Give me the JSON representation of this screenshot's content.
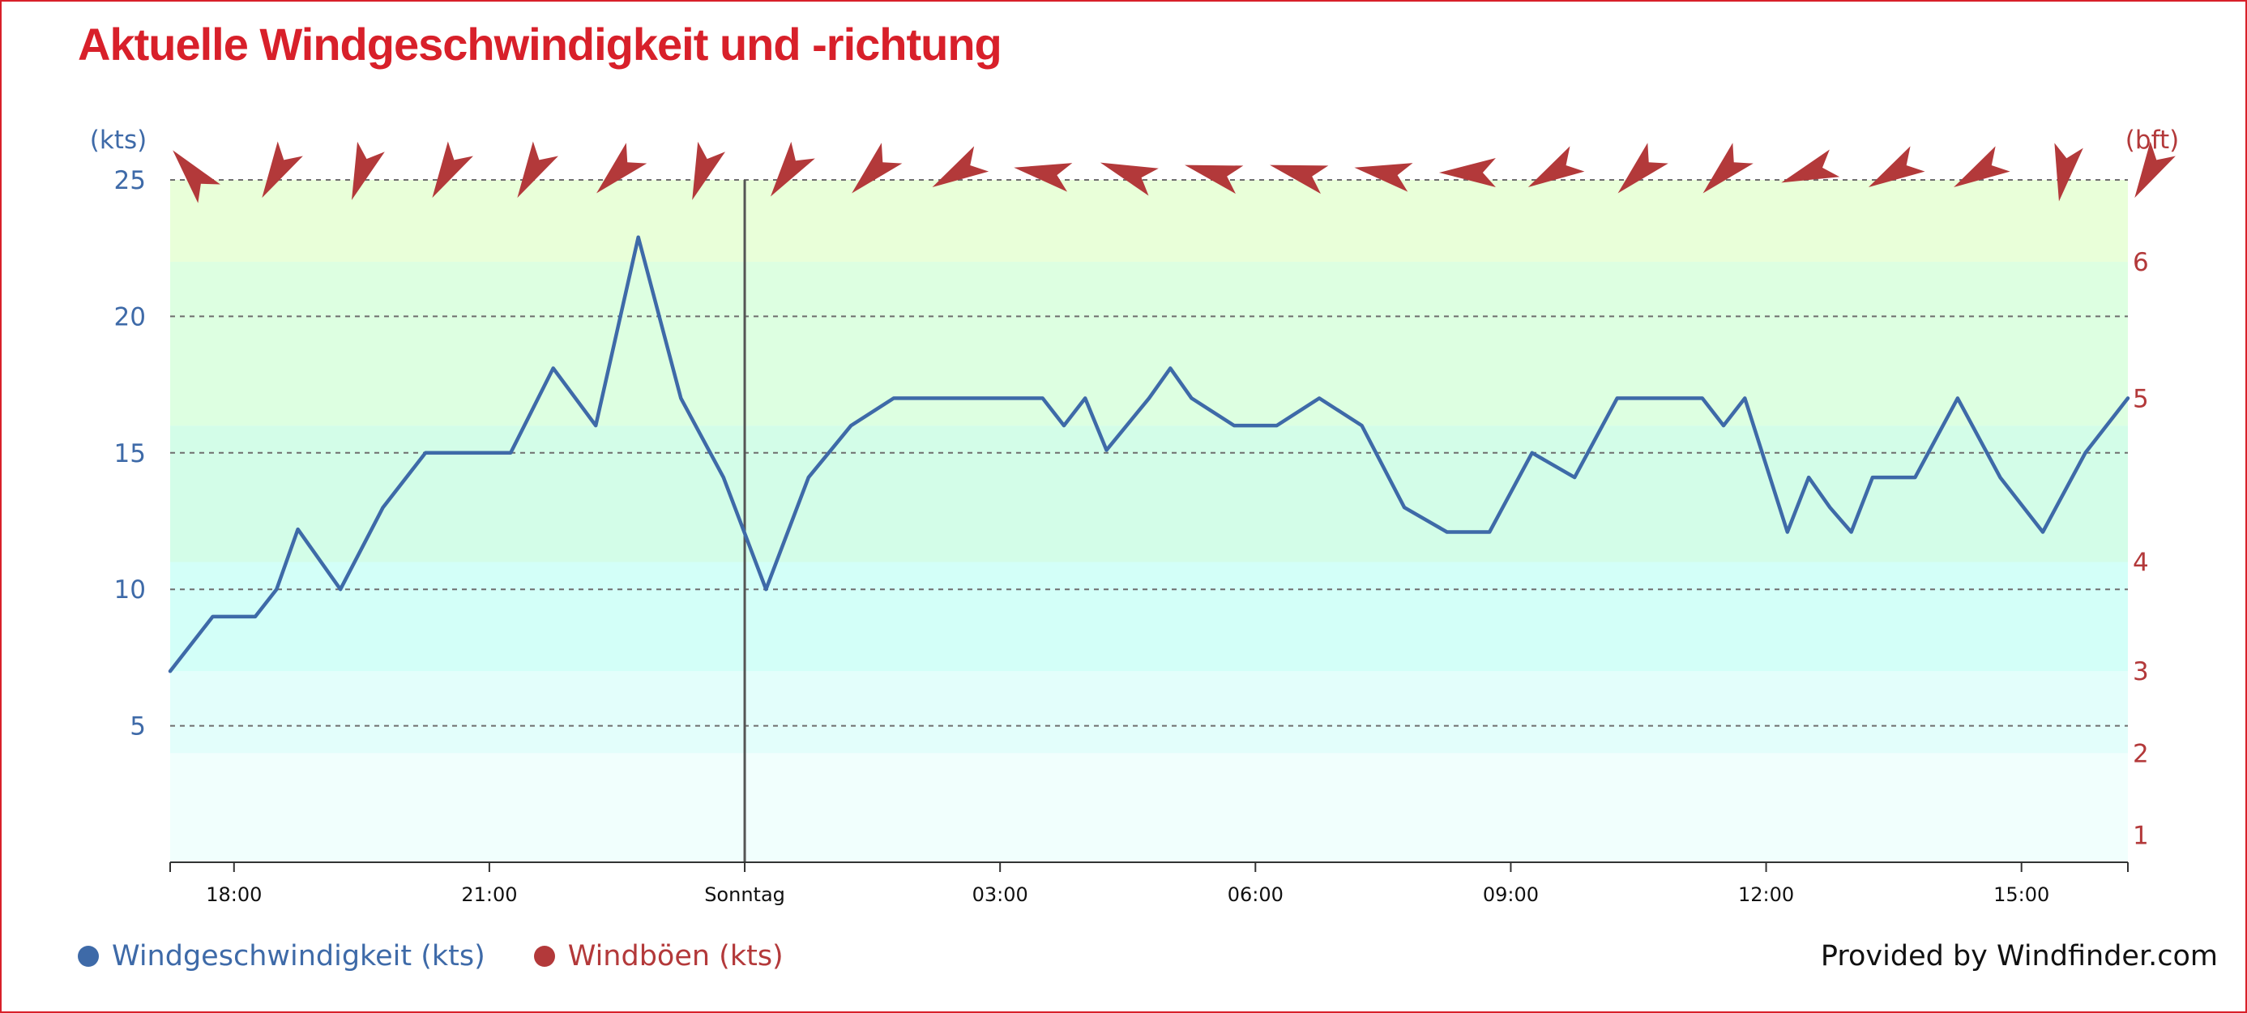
{
  "title": "Aktuelle Windgeschwindigkeit und -richtung",
  "credit": "Provided by Windfinder.com",
  "legend": [
    {
      "label": "Windgeschwindigkeit (kts)",
      "color": "#3e6aa8"
    },
    {
      "label": "Windböen (kts)",
      "color": "#b3393a"
    }
  ],
  "chart_data": {
    "type": "line",
    "y_left": {
      "label": "(kts)",
      "range": [
        0,
        25
      ],
      "ticks": [
        5,
        10,
        15,
        20,
        25
      ],
      "color": "#3e6aa8"
    },
    "y_right": {
      "label": "(bft)",
      "ticks": [
        "1",
        "2",
        "3",
        "4",
        "5",
        "6"
      ],
      "tick_kts": [
        1.0,
        4.0,
        7.0,
        11.0,
        17.0,
        22.0
      ],
      "color": "#b3393a"
    },
    "x": {
      "range_hours": [
        17.25,
        40.25
      ],
      "ticks": [
        {
          "label": "18:00",
          "t": 18
        },
        {
          "label": "21:00",
          "t": 21
        },
        {
          "label": "Sonntag",
          "t": 24,
          "day_marker": true
        },
        {
          "label": "03:00",
          "t": 27
        },
        {
          "label": "06:00",
          "t": 30
        },
        {
          "label": "09:00",
          "t": 33
        },
        {
          "label": "12:00",
          "t": 36
        },
        {
          "label": "15:00",
          "t": 39
        }
      ]
    },
    "grid": "horizontal-dashed",
    "background_bands": [
      {
        "from": 0,
        "to": 4,
        "color": "#f1fffd"
      },
      {
        "from": 4,
        "to": 7,
        "color": "#e3fefb"
      },
      {
        "from": 7,
        "to": 11,
        "color": "#d3fff8"
      },
      {
        "from": 11,
        "to": 16,
        "color": "#d3fde8"
      },
      {
        "from": 16,
        "to": 22,
        "color": "#ddffe1"
      },
      {
        "from": 22,
        "to": 25,
        "color": "#e9ffd9"
      }
    ],
    "series": [
      {
        "name": "Windgeschwindigkeit (kts)",
        "color": "#3e6aa8",
        "points": [
          [
            17.25,
            7
          ],
          [
            17.75,
            9
          ],
          [
            18.25,
            9
          ],
          [
            18.5,
            10
          ],
          [
            18.75,
            12.2
          ],
          [
            19.25,
            10
          ],
          [
            19.75,
            13
          ],
          [
            20.25,
            15
          ],
          [
            21.25,
            15
          ],
          [
            21.75,
            18.1
          ],
          [
            22.25,
            16
          ],
          [
            22.75,
            22.9
          ],
          [
            23.25,
            17
          ],
          [
            23.75,
            14.1
          ],
          [
            24.25,
            10
          ],
          [
            24.75,
            14.1
          ],
          [
            25.25,
            16
          ],
          [
            25.75,
            17
          ],
          [
            27.5,
            17
          ],
          [
            27.75,
            16
          ],
          [
            28.0,
            17
          ],
          [
            28.25,
            15.1
          ],
          [
            28.75,
            17
          ],
          [
            29.0,
            18.1
          ],
          [
            29.25,
            17
          ],
          [
            29.75,
            16
          ],
          [
            30.25,
            16
          ],
          [
            30.75,
            17
          ],
          [
            31.25,
            16
          ],
          [
            31.75,
            13
          ],
          [
            32.25,
            12.1
          ],
          [
            32.75,
            12.1
          ],
          [
            33.25,
            15
          ],
          [
            33.75,
            14.1
          ],
          [
            34.25,
            17
          ],
          [
            35.25,
            17
          ],
          [
            35.5,
            16
          ],
          [
            35.75,
            17
          ],
          [
            36.25,
            12.1
          ],
          [
            36.5,
            14.1
          ],
          [
            36.75,
            13
          ],
          [
            37.0,
            12.1
          ],
          [
            37.25,
            14.1
          ],
          [
            37.75,
            14.1
          ],
          [
            38.25,
            17
          ],
          [
            38.75,
            14.1
          ],
          [
            39.25,
            12.1
          ],
          [
            39.75,
            15
          ],
          [
            40.25,
            17
          ]
        ]
      }
    ],
    "direction_arrows": {
      "color": "#b3393a",
      "items": [
        {
          "t": 17.5,
          "deg": 140
        },
        {
          "t": 18.5,
          "deg": 30
        },
        {
          "t": 19.5,
          "deg": 20
        },
        {
          "t": 20.5,
          "deg": 30
        },
        {
          "t": 21.5,
          "deg": 30
        },
        {
          "t": 22.5,
          "deg": 45
        },
        {
          "t": 23.5,
          "deg": 20
        },
        {
          "t": 24.5,
          "deg": 35
        },
        {
          "t": 25.5,
          "deg": 45
        },
        {
          "t": 26.5,
          "deg": 60
        },
        {
          "t": 27.5,
          "deg": 100
        },
        {
          "t": 28.5,
          "deg": 110
        },
        {
          "t": 29.5,
          "deg": 105
        },
        {
          "t": 30.5,
          "deg": 105
        },
        {
          "t": 31.5,
          "deg": 100
        },
        {
          "t": 32.5,
          "deg": 90
        },
        {
          "t": 33.5,
          "deg": 60
        },
        {
          "t": 34.5,
          "deg": 45
        },
        {
          "t": 35.5,
          "deg": 45
        },
        {
          "t": 36.5,
          "deg": 70
        },
        {
          "t": 37.5,
          "deg": 60
        },
        {
          "t": 38.5,
          "deg": 60
        },
        {
          "t": 39.5,
          "deg": 10
        },
        {
          "t": 40.5,
          "deg": 30
        }
      ]
    }
  }
}
